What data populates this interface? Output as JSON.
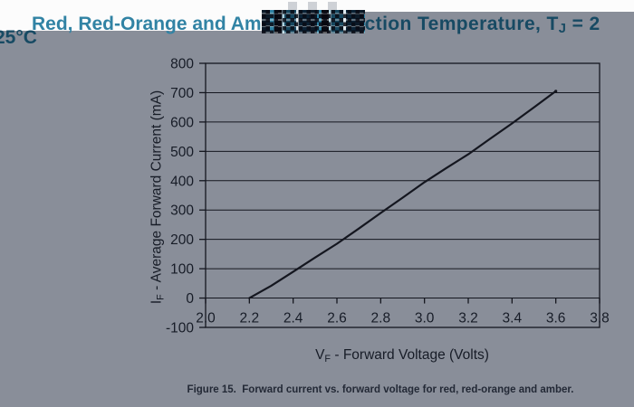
{
  "page": {
    "title": {
      "part1": "Red, Red-Orange and Am",
      "part2_pre": "ction Temperature, T",
      "part2_sub": "J",
      "part2_post": " = 2",
      "line2": "25°C"
    },
    "caption": "Figure 15.  Forward current vs. forward voltage for red, red-orange and amber."
  },
  "colors": {
    "background_gray": "#898e99",
    "title_teal": "#3183a4",
    "title_dark": "#174a63",
    "axis_line": "#14161f",
    "tick_text": "#171c27",
    "caption_text": "#232936",
    "page_white": "#fcfcfc"
  },
  "chart_data": {
    "type": "line",
    "title": "",
    "xlabel": "VF - Forward Voltage (Volts)",
    "xlabel_parts": {
      "pre": "V",
      "sub": "F",
      "post": " - Forward Voltage (Volts)"
    },
    "ylabel": "IF - Average Forward Current (mA)",
    "ylabel_parts": {
      "pre": "I",
      "sub": "F",
      "post": " -  Average Forward Current (mA)"
    },
    "xlim": [
      2.0,
      3.8
    ],
    "ylim": [
      -100,
      800
    ],
    "x_ticks": [
      "2.0",
      "2.2",
      "2.4",
      "2.6",
      "2.8",
      "3.0",
      "3.2",
      "3.4",
      "3.6",
      "3.8"
    ],
    "y_ticks": [
      800,
      700,
      600,
      500,
      400,
      300,
      200,
      100,
      0,
      -100
    ],
    "grid": "horizontal",
    "legend": "none",
    "series": [
      {
        "name": "red, red-orange and amber",
        "x": [
          2.2,
          2.3,
          2.4,
          2.5,
          2.6,
          2.7,
          2.8,
          2.9,
          3.0,
          3.1,
          3.2,
          3.3,
          3.4,
          3.5,
          3.6
        ],
        "y": [
          0,
          42,
          90,
          138,
          185,
          237,
          290,
          342,
          395,
          443,
          490,
          543,
          595,
          650,
          705
        ]
      }
    ]
  }
}
